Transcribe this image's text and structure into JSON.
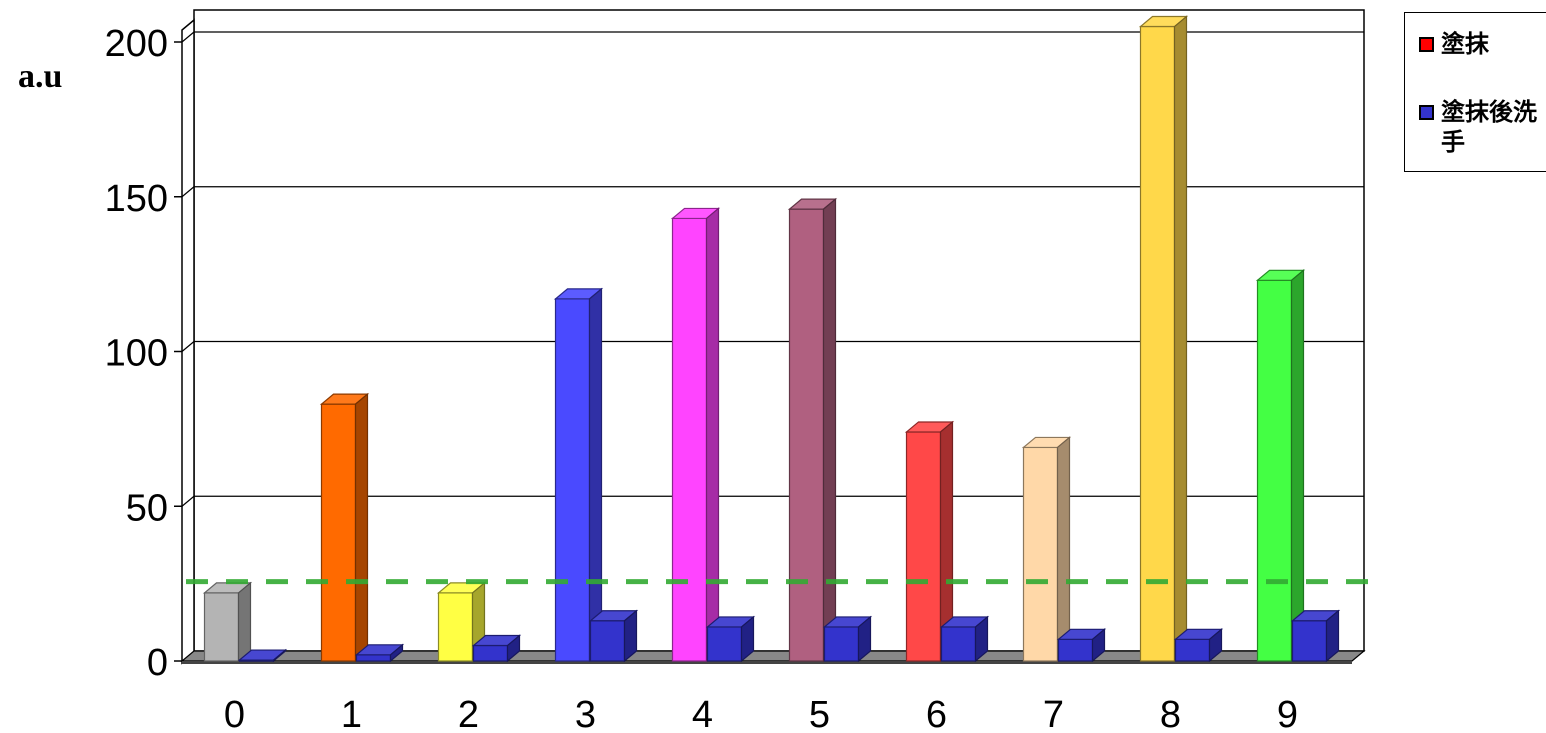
{
  "chart_data": {
    "type": "bar",
    "title": "",
    "xlabel": "",
    "ylabel": "a.u",
    "ylim": [
      0,
      210
    ],
    "yticks": [
      0,
      50,
      100,
      150,
      200
    ],
    "grid": true,
    "legend_position": "top-right",
    "categories": [
      "0",
      "1",
      "2",
      "3",
      "4",
      "5",
      "6",
      "7",
      "8",
      "9"
    ],
    "series": [
      {
        "name": "塗抹",
        "legend_color": "#ff0000",
        "values": [
          22,
          83,
          22,
          117,
          143,
          146,
          74,
          69,
          205,
          123
        ],
        "colors": [
          "#b4b4b4",
          "#ff6a00",
          "#ffff44",
          "#4a4aff",
          "#ff44ff",
          "#b06080",
          "#ff4848",
          "#ffd8a8",
          "#ffd84a",
          "#44ff44"
        ]
      },
      {
        "name": "塗抹後洗手",
        "legend_color": "#3333cc",
        "values": [
          0.3,
          2,
          5,
          13,
          11,
          11,
          11,
          7,
          7,
          13
        ],
        "colors": [
          "#3333cc",
          "#3333cc",
          "#3333cc",
          "#3333cc",
          "#3333cc",
          "#3333cc",
          "#3333cc",
          "#3333cc",
          "#3333cc",
          "#3333cc"
        ]
      }
    ],
    "reference_line": {
      "value": 25,
      "style": "dashed",
      "color": "#33aa33"
    }
  }
}
